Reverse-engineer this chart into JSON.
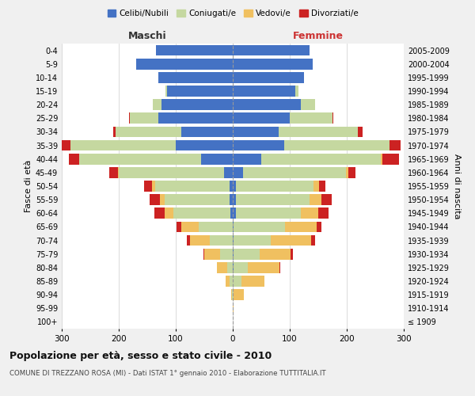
{
  "age_groups": [
    "100+",
    "95-99",
    "90-94",
    "85-89",
    "80-84",
    "75-79",
    "70-74",
    "65-69",
    "60-64",
    "55-59",
    "50-54",
    "45-49",
    "40-44",
    "35-39",
    "30-34",
    "25-29",
    "20-24",
    "15-19",
    "10-14",
    "5-9",
    "0-4"
  ],
  "birth_years": [
    "≤ 1909",
    "1910-1914",
    "1915-1919",
    "1920-1924",
    "1925-1929",
    "1930-1934",
    "1935-1939",
    "1940-1944",
    "1945-1949",
    "1950-1954",
    "1955-1959",
    "1960-1964",
    "1965-1969",
    "1970-1974",
    "1975-1979",
    "1980-1984",
    "1985-1989",
    "1990-1994",
    "1995-1999",
    "2000-2004",
    "2005-2009"
  ],
  "maschi_celibe": [
    0,
    0,
    0,
    0,
    0,
    0,
    0,
    0,
    4,
    5,
    6,
    15,
    55,
    100,
    90,
    130,
    125,
    115,
    130,
    170,
    135
  ],
  "maschi_coniugato": [
    0,
    0,
    2,
    5,
    10,
    22,
    40,
    60,
    100,
    115,
    130,
    185,
    215,
    185,
    115,
    50,
    15,
    3,
    0,
    0,
    0
  ],
  "maschi_vedovo": [
    0,
    0,
    1,
    8,
    18,
    28,
    35,
    30,
    15,
    8,
    5,
    2,
    0,
    0,
    0,
    0,
    0,
    0,
    0,
    0,
    0
  ],
  "maschi_divorziato": [
    0,
    0,
    0,
    0,
    0,
    2,
    5,
    8,
    18,
    18,
    15,
    15,
    18,
    15,
    5,
    2,
    0,
    0,
    0,
    0,
    0
  ],
  "femmine_celibe": [
    0,
    0,
    0,
    0,
    2,
    2,
    2,
    2,
    5,
    5,
    6,
    18,
    50,
    90,
    80,
    100,
    120,
    110,
    125,
    140,
    135
  ],
  "femmine_coniugato": [
    0,
    0,
    2,
    15,
    25,
    45,
    65,
    90,
    115,
    130,
    135,
    180,
    210,
    185,
    140,
    75,
    25,
    5,
    0,
    0,
    0
  ],
  "femmine_vedovo": [
    0,
    2,
    18,
    40,
    55,
    55,
    70,
    55,
    30,
    20,
    10,
    5,
    2,
    0,
    0,
    0,
    0,
    0,
    0,
    0,
    0
  ],
  "femmine_divorziato": [
    0,
    0,
    0,
    0,
    2,
    3,
    8,
    8,
    18,
    18,
    12,
    12,
    30,
    20,
    8,
    2,
    0,
    0,
    0,
    0,
    0
  ],
  "color_celibe": "#4472c4",
  "color_coniugato": "#c5d8a0",
  "color_vedovo": "#f0c060",
  "color_divorziato": "#cc2222",
  "title": "Popolazione per età, sesso e stato civile - 2010",
  "subtitle": "COMUNE DI TREZZANO ROSA (MI) - Dati ISTAT 1° gennaio 2010 - Elaborazione TUTTITALIA.IT",
  "ylabel_left": "Fasce di età",
  "ylabel_right": "Anni di nascita",
  "xlabel_left": "Maschi",
  "xlabel_right": "Femmine",
  "xlim": 300,
  "bg_color": "#f0f0f0",
  "plot_bg": "#ffffff",
  "legend_labels": [
    "Celibi/Nubili",
    "Coniugati/e",
    "Vedovi/e",
    "Divorziati/e"
  ]
}
